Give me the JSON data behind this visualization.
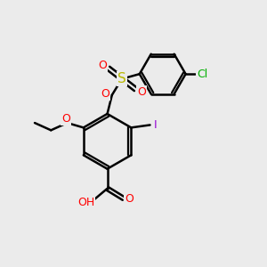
{
  "bg_color": "#ebebeb",
  "bond_color": "#000000",
  "bond_width": 1.8,
  "atom_colors": {
    "O": "#ff0000",
    "S": "#b8b800",
    "I": "#9400d3",
    "Cl": "#00b000",
    "C": "#000000",
    "H": "#000000"
  },
  "font_size": 9
}
